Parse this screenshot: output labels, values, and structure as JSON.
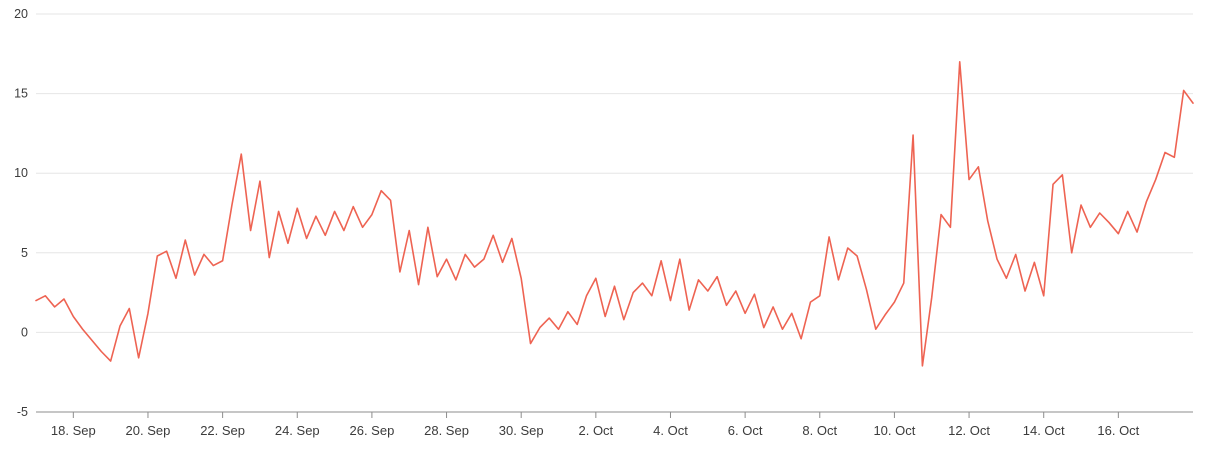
{
  "page": {
    "background": "#ffffff"
  },
  "chart_data": {
    "type": "line",
    "title": "",
    "xlabel": "",
    "ylabel": "",
    "legend": false,
    "grid": true,
    "ylim": [
      -5,
      20
    ],
    "y_ticks": [
      {
        "value": -5,
        "label": "-5"
      },
      {
        "value": 0,
        "label": "0"
      },
      {
        "value": 5,
        "label": "5"
      },
      {
        "value": 10,
        "label": "10"
      },
      {
        "value": 15,
        "label": "15"
      },
      {
        "value": 20,
        "label": "20"
      }
    ],
    "x_span_days": 31,
    "points_per_day": 4,
    "x_ticks": [
      {
        "day": 1,
        "label": "18. Sep"
      },
      {
        "day": 3,
        "label": "20. Sep"
      },
      {
        "day": 5,
        "label": "22. Sep"
      },
      {
        "day": 7,
        "label": "24. Sep"
      },
      {
        "day": 9,
        "label": "26. Sep"
      },
      {
        "day": 11,
        "label": "28. Sep"
      },
      {
        "day": 13,
        "label": "30. Sep"
      },
      {
        "day": 15,
        "label": "2. Oct"
      },
      {
        "day": 17,
        "label": "4. Oct"
      },
      {
        "day": 19,
        "label": "6. Oct"
      },
      {
        "day": 21,
        "label": "8. Oct"
      },
      {
        "day": 23,
        "label": "10. Oct"
      },
      {
        "day": 25,
        "label": "12. Oct"
      },
      {
        "day": 27,
        "label": "14. Oct"
      },
      {
        "day": 29,
        "label": "16. Oct"
      }
    ],
    "series": [
      {
        "color": "#ee6352",
        "values": [
          2.0,
          2.3,
          1.6,
          2.1,
          1.0,
          0.2,
          -0.5,
          -1.2,
          -1.8,
          0.4,
          1.5,
          -1.6,
          1.2,
          4.8,
          5.1,
          3.4,
          5.8,
          3.6,
          4.9,
          4.2,
          4.5,
          8.0,
          11.2,
          6.4,
          9.5,
          4.7,
          7.6,
          5.6,
          7.8,
          5.9,
          7.3,
          6.1,
          7.6,
          6.4,
          7.9,
          6.6,
          7.4,
          8.9,
          8.3,
          3.8,
          6.4,
          3.0,
          6.6,
          3.5,
          4.6,
          3.3,
          4.9,
          4.1,
          4.6,
          6.1,
          4.4,
          5.9,
          3.4,
          -0.7,
          0.3,
          0.9,
          0.2,
          1.3,
          0.5,
          2.3,
          3.4,
          1.0,
          2.9,
          0.8,
          2.5,
          3.1,
          2.3,
          4.5,
          2.0,
          4.6,
          1.4,
          3.3,
          2.6,
          3.5,
          1.7,
          2.6,
          1.2,
          2.4,
          0.3,
          1.6,
          0.2,
          1.2,
          -0.4,
          1.9,
          2.3,
          6.0,
          3.3,
          5.3,
          4.8,
          2.7,
          0.2,
          1.1,
          1.9,
          3.1,
          12.4,
          -2.1,
          2.2,
          7.4,
          6.6,
          17.0,
          9.6,
          10.4,
          7.0,
          4.6,
          3.4,
          4.9,
          2.6,
          4.4,
          2.3,
          9.3,
          9.9,
          5.0,
          8.0,
          6.6,
          7.5,
          6.9,
          6.2,
          7.6,
          6.3,
          8.2,
          9.6,
          11.3,
          11.0,
          15.2,
          14.4
        ]
      }
    ],
    "colors": {
      "grid": "#e6e6e6",
      "axis": "#8d8d8d",
      "tick": "#8d8d8d",
      "label": "#3c3c3c"
    }
  }
}
